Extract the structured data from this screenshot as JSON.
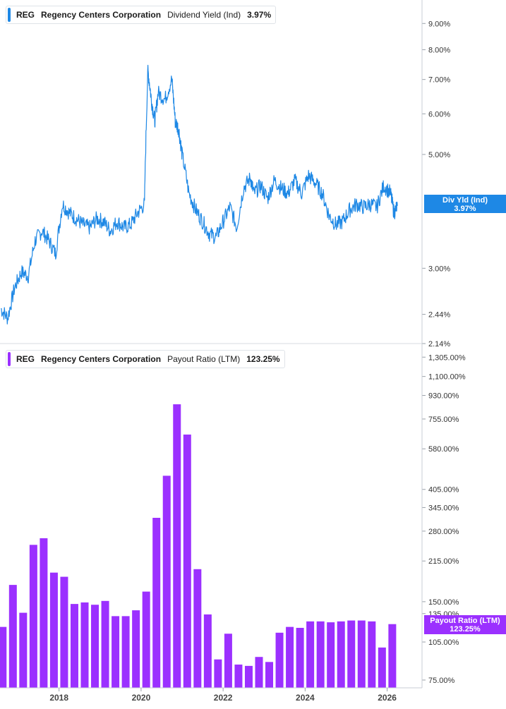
{
  "chart_data": [
    {
      "type": "line",
      "ticker": "REG",
      "company": "Regency Centers Corporation",
      "metric": "Dividend Yield (Ind)",
      "current_value": "3.97%",
      "tag_label": "Div Yld (Ind)",
      "tag_value": "3.97%",
      "color": "#1e88e5",
      "scale": "log",
      "y_ticks": [
        "9.00%",
        "8.00%",
        "7.00%",
        "6.00%",
        "5.00%",
        "3.00%",
        "2.44%",
        "2.14%"
      ],
      "y_tick_values": [
        9.0,
        8.0,
        7.0,
        6.0,
        5.0,
        3.0,
        2.44,
        2.14
      ],
      "ylim": [
        2.14,
        10.0
      ],
      "x_ticks": [
        "2018",
        "2020",
        "2022",
        "2024",
        "2026"
      ],
      "x": [
        "2016-08",
        "2016-10",
        "2016-12",
        "2017-02",
        "2017-04",
        "2017-06",
        "2017-08",
        "2017-10",
        "2017-12",
        "2018-02",
        "2018-04",
        "2018-06",
        "2018-08",
        "2018-10",
        "2018-12",
        "2019-02",
        "2019-04",
        "2019-06",
        "2019-08",
        "2019-10",
        "2019-12",
        "2020-02",
        "2020-03",
        "2020-04",
        "2020-05",
        "2020-06",
        "2020-08",
        "2020-10",
        "2020-11",
        "2020-12",
        "2021-01",
        "2021-03",
        "2021-05",
        "2021-07",
        "2021-09",
        "2021-11",
        "2022-01",
        "2022-03",
        "2022-05",
        "2022-07",
        "2022-09",
        "2022-10",
        "2022-12",
        "2023-02",
        "2023-04",
        "2023-06",
        "2023-08",
        "2023-10",
        "2023-12",
        "2024-02",
        "2024-04",
        "2024-06",
        "2024-08",
        "2024-10",
        "2024-12",
        "2025-02",
        "2025-04",
        "2025-06",
        "2025-08",
        "2025-10",
        "2025-12",
        "2026-02",
        "2026-03",
        "2026-04"
      ],
      "values": [
        2.5,
        2.4,
        2.75,
        2.95,
        2.9,
        3.4,
        3.55,
        3.4,
        3.2,
        4.0,
        3.85,
        3.75,
        3.65,
        3.6,
        3.75,
        3.7,
        3.55,
        3.7,
        3.6,
        3.65,
        3.85,
        4.0,
        7.3,
        6.4,
        5.8,
        6.6,
        6.4,
        7.0,
        5.8,
        5.6,
        5.0,
        4.2,
        3.9,
        3.7,
        3.5,
        3.45,
        3.7,
        3.95,
        3.6,
        4.3,
        4.5,
        4.2,
        4.35,
        4.1,
        4.45,
        4.3,
        4.2,
        4.45,
        4.2,
        4.55,
        4.4,
        4.2,
        3.8,
        3.65,
        3.7,
        3.9,
        4.0,
        3.95,
        4.0,
        3.95,
        4.35,
        4.2,
        3.85,
        3.97
      ]
    },
    {
      "type": "bar",
      "ticker": "REG",
      "company": "Regency Centers Corporation",
      "metric": "Payout Ratio (LTM)",
      "current_value": "123.25%",
      "tag_label": "Payout Ratio (LTM)",
      "tag_value": "123.25%",
      "color": "#9b30ff",
      "scale": "log",
      "y_ticks": [
        "1,305.00%",
        "1,100.00%",
        "930.00%",
        "755.00%",
        "580.00%",
        "405.00%",
        "345.00%",
        "280.00%",
        "215.00%",
        "150.00%",
        "135.00%",
        "105.00%",
        "75.00%"
      ],
      "y_tick_values": [
        1305,
        1100,
        930,
        755,
        580,
        405,
        345,
        280,
        215,
        150,
        135,
        105,
        75
      ],
      "ylim": [
        70,
        1400
      ],
      "x_ticks": [
        "2018",
        "2020",
        "2022",
        "2024",
        "2026"
      ],
      "x": [
        "2016-Q3",
        "2016-Q4",
        "2017-Q1",
        "2017-Q2",
        "2017-Q3",
        "2017-Q4",
        "2018-Q1",
        "2018-Q2",
        "2018-Q3",
        "2018-Q4",
        "2019-Q1",
        "2019-Q2",
        "2019-Q3",
        "2019-Q4",
        "2020-Q1",
        "2020-Q2",
        "2020-Q3",
        "2020-Q4",
        "2021-Q1",
        "2021-Q2",
        "2021-Q3",
        "2021-Q4",
        "2022-Q1",
        "2022-Q2",
        "2022-Q3",
        "2022-Q4",
        "2023-Q1",
        "2023-Q2",
        "2023-Q3",
        "2023-Q4",
        "2024-Q1",
        "2024-Q2",
        "2024-Q3",
        "2024-Q4",
        "2025-Q1",
        "2025-Q2",
        "2025-Q3",
        "2025-Q4",
        "2026-Q1"
      ],
      "values": [
        120,
        174,
        136,
        248,
        263,
        194,
        187,
        147,
        149,
        146,
        151,
        132,
        132,
        139,
        164,
        315,
        457,
        860,
        658,
        200,
        134,
        90,
        113,
        86,
        85,
        92,
        88,
        114,
        120,
        119,
        126,
        126,
        125,
        126,
        127,
        127,
        126,
        100,
        123
      ]
    }
  ]
}
